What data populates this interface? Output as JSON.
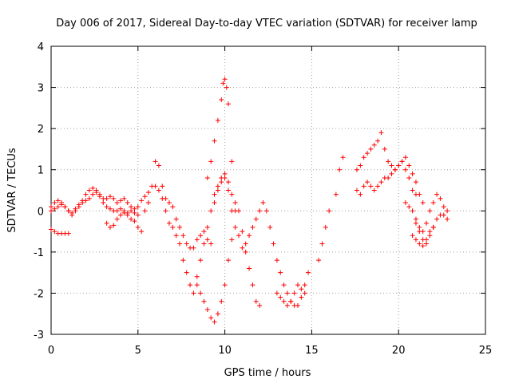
{
  "chart_data": {
    "type": "scatter",
    "title": "Day 006 of 2017, Sidereal Day-to-day VTEC variation (SDTVAR) for receiver lamp",
    "xlabel": "GPS time / hours",
    "ylabel": "SDTVAR / TECUs",
    "xlim": [
      0,
      25
    ],
    "ylim": [
      -3,
      4
    ],
    "xticks": [
      0,
      5,
      10,
      15,
      20,
      25
    ],
    "yticks": [
      -3,
      -2,
      -1,
      0,
      1,
      2,
      3,
      4
    ],
    "grid": true,
    "marker": "+",
    "series": [
      {
        "name": "SDTVAR",
        "color": "#ff0000",
        "x": [
          0.0,
          0.2,
          0.4,
          0.6,
          0.8,
          1.0,
          1.2,
          1.4,
          1.6,
          1.8,
          2.0,
          2.2,
          2.4,
          2.6,
          2.8,
          3.0,
          3.2,
          3.4,
          3.6,
          3.8,
          4.0,
          4.2,
          4.4,
          4.6,
          4.8,
          5.0,
          5.2,
          5.4,
          5.6,
          0.0,
          0.2,
          0.4,
          0.6,
          0.8,
          1.0,
          0.0,
          0.2,
          0.4,
          0.6,
          0.8,
          1.0,
          1.2,
          1.4,
          1.6,
          1.8,
          2.0,
          2.2,
          2.4,
          2.6,
          2.8,
          3.0,
          3.2,
          3.4,
          3.6,
          3.8,
          4.0,
          4.2,
          4.4,
          4.6,
          4.8,
          5.0,
          3.2,
          3.4,
          3.6,
          3.8,
          4.0,
          4.2,
          4.4,
          4.6,
          4.8,
          5.0,
          5.2,
          5.4,
          5.6,
          5.8,
          6.0,
          6.2,
          6.4,
          6.6,
          6.8,
          7.0,
          7.2,
          7.4,
          7.6,
          7.8,
          8.0,
          8.2,
          8.4,
          8.6,
          8.8,
          9.0,
          9.2,
          6.0,
          6.2,
          6.4,
          6.6,
          6.8,
          7.0,
          7.2,
          7.4,
          7.6,
          7.8,
          8.0,
          8.2,
          8.4,
          8.6,
          8.8,
          9.0,
          9.2,
          9.4,
          9.6,
          9.8,
          10.0,
          10.2,
          10.4,
          10.6,
          9.0,
          9.2,
          9.4,
          9.6,
          9.8,
          9.9,
          10.0,
          10.1,
          10.2,
          10.4,
          10.6,
          10.8,
          11.0,
          11.2,
          11.4,
          11.6,
          11.8,
          12.0,
          12.2,
          9.4,
          9.6,
          9.8,
          10.0,
          10.2,
          10.4,
          10.6,
          10.8,
          11.0,
          11.2,
          11.4,
          11.6,
          11.8,
          12.0,
          8.4,
          8.6,
          8.8,
          9.0,
          9.2,
          9.4,
          9.6,
          9.8,
          10.0,
          10.2,
          10.4,
          12.4,
          12.6,
          12.8,
          13.0,
          13.2,
          13.4,
          13.6,
          13.8,
          14.0,
          14.2,
          14.4,
          14.6,
          14.8,
          13.0,
          13.2,
          13.4,
          13.6,
          13.8,
          14.0,
          14.2,
          14.4,
          14.6,
          15.4,
          15.6,
          15.8,
          16.0,
          16.4,
          16.6,
          16.8,
          17.6,
          17.8,
          18.0,
          18.2,
          18.4,
          18.6,
          18.8,
          19.0,
          19.2,
          19.4,
          19.6,
          19.8,
          20.0,
          20.2,
          20.4,
          20.6,
          20.8,
          21.0,
          21.2,
          21.4,
          17.6,
          17.8,
          18.0,
          18.2,
          18.4,
          18.6,
          18.8,
          19.0,
          19.2,
          19.4,
          19.6,
          19.8,
          20.0,
          20.2,
          20.4,
          20.6,
          20.8,
          21.0,
          20.4,
          20.6,
          20.8,
          21.0,
          21.2,
          21.4,
          21.6,
          21.8,
          22.0,
          22.2,
          22.4,
          22.6,
          22.8,
          21.0,
          21.2,
          21.4,
          21.6,
          21.8,
          22.0,
          22.2,
          22.4,
          22.6,
          22.8,
          20.8,
          21.0,
          21.2,
          21.4,
          21.6,
          21.8,
          22.0
        ],
        "y": [
          0.1,
          0.2,
          0.25,
          0.2,
          0.1,
          0.0,
          -0.1,
          0.0,
          0.1,
          0.25,
          0.4,
          0.5,
          0.55,
          0.5,
          0.4,
          0.3,
          0.3,
          0.35,
          0.3,
          0.2,
          0.25,
          0.3,
          0.2,
          0.1,
          0.05,
          0.1,
          0.25,
          0.35,
          0.45,
          -0.45,
          -0.5,
          -0.55,
          -0.55,
          -0.55,
          -0.55,
          0.0,
          0.05,
          0.1,
          0.15,
          0.1,
          0.0,
          -0.05,
          0.05,
          0.15,
          0.2,
          0.25,
          0.3,
          0.4,
          0.45,
          0.35,
          0.2,
          0.1,
          0.05,
          0.0,
          0.0,
          0.05,
          0.0,
          -0.05,
          0.0,
          -0.05,
          -0.1,
          -0.3,
          -0.4,
          -0.35,
          -0.2,
          -0.1,
          -0.05,
          -0.1,
          -0.2,
          -0.25,
          -0.4,
          -0.5,
          0.0,
          0.2,
          0.6,
          1.2,
          1.1,
          0.6,
          0.3,
          0.2,
          0.1,
          -0.2,
          -0.4,
          -0.6,
          -0.8,
          -0.9,
          -0.9,
          -0.7,
          -0.6,
          -0.5,
          -0.7,
          -0.8,
          0.6,
          0.5,
          0.3,
          0.0,
          -0.3,
          -0.4,
          -0.6,
          -0.8,
          -1.2,
          -1.5,
          -1.8,
          -2.0,
          -1.6,
          -1.2,
          -0.8,
          -0.4,
          0.0,
          0.2,
          0.5,
          0.7,
          0.8,
          0.5,
          0.0,
          -0.4,
          0.8,
          1.2,
          1.7,
          2.2,
          2.7,
          3.1,
          3.2,
          3.0,
          2.6,
          1.2,
          0.0,
          -0.6,
          -0.9,
          -0.8,
          -0.6,
          -0.4,
          -0.2,
          0.0,
          0.2,
          0.4,
          0.6,
          0.8,
          0.9,
          0.7,
          0.4,
          0.2,
          0.0,
          -0.5,
          -1.0,
          -1.4,
          -1.8,
          -2.2,
          -2.3,
          -1.8,
          -2.0,
          -2.2,
          -2.4,
          -2.6,
          -2.7,
          -2.5,
          -2.2,
          -1.8,
          -1.2,
          -0.7,
          0.0,
          -0.4,
          -0.8,
          -1.2,
          -1.5,
          -1.8,
          -2.0,
          -2.2,
          -2.3,
          -2.3,
          -2.1,
          -1.8,
          -1.5,
          -2.0,
          -2.1,
          -2.2,
          -2.3,
          -2.2,
          -2.0,
          -1.8,
          -1.9,
          -2.0,
          -1.2,
          -0.8,
          -0.4,
          0.0,
          0.4,
          1.0,
          1.3,
          1.0,
          1.1,
          1.3,
          1.4,
          1.5,
          1.6,
          1.7,
          1.9,
          1.5,
          1.2,
          1.1,
          1.0,
          1.1,
          1.2,
          1.3,
          1.1,
          0.9,
          0.7,
          0.4,
          0.2,
          0.5,
          0.4,
          0.6,
          0.7,
          0.6,
          0.5,
          0.6,
          0.7,
          0.8,
          0.8,
          0.9,
          1.0,
          1.1,
          1.2,
          1.0,
          0.8,
          0.5,
          0.4,
          0.2,
          0.1,
          0.0,
          -0.2,
          -0.4,
          -0.5,
          -0.3,
          0.0,
          0.2,
          0.4,
          0.3,
          0.1,
          0.0,
          -0.3,
          -0.5,
          -0.7,
          -0.8,
          -0.6,
          -0.4,
          -0.2,
          -0.1,
          -0.1,
          -0.2,
          -0.6,
          -0.7,
          -0.8,
          -0.85,
          -0.7,
          -0.5,
          -0.4
        ]
      }
    ]
  }
}
